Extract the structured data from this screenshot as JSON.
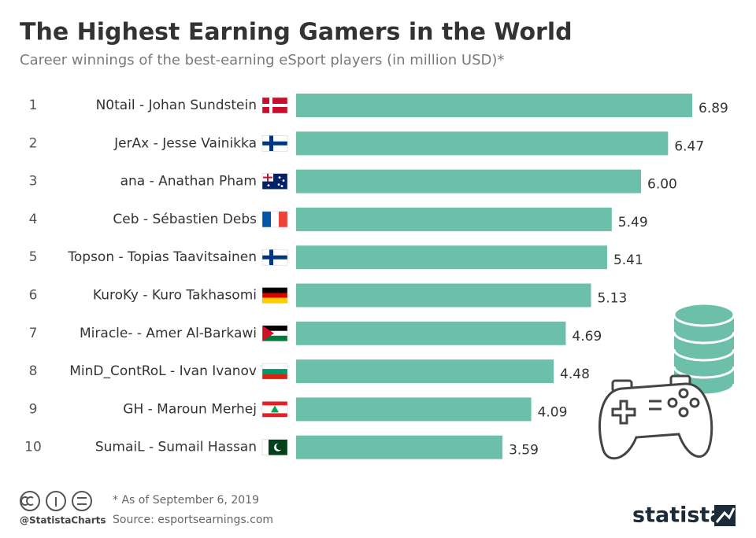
{
  "chart_data": {
    "type": "bar",
    "orientation": "horizontal",
    "title": "The Highest Earning Gamers in the World",
    "subtitle": "Career winnings of the best-earning eSport players (in million USD)*",
    "ranks": [
      1,
      2,
      3,
      4,
      5,
      6,
      7,
      8,
      9,
      10
    ],
    "categories": [
      "N0tail - Johan Sundstein",
      "JerAx - Jesse Vainikka",
      "ana - Anathan Pham",
      "Ceb - Sébastien Debs",
      "Topson - Topias Taavitsainen",
      "KuroKy - Kuro Takhasomi",
      "Miracle- - Amer Al-Barkawi",
      "MinD_ContRoL - Ivan Ivanov",
      "GH - Maroun Merhej",
      "SumaiL - Sumail Hassan"
    ],
    "values": [
      6.89,
      6.47,
      6.0,
      5.49,
      5.41,
      5.13,
      4.69,
      4.48,
      4.09,
      3.59
    ],
    "value_labels": [
      "6.89",
      "6.47",
      "6.00",
      "5.49",
      "5.41",
      "5.13",
      "4.69",
      "4.48",
      "4.09",
      "3.59"
    ],
    "color": "#6cc0aa",
    "note": "* As of September 6, 2019",
    "source": "Source: esportsearnings.com",
    "credit": "@StatistaCharts",
    "brand": "statista"
  }
}
